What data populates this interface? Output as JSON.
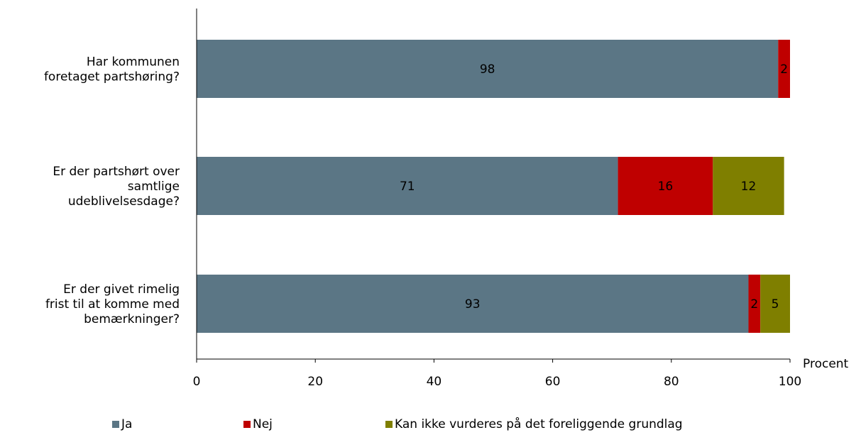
{
  "chart_data": {
    "type": "bar",
    "orientation": "horizontal",
    "stacked": true,
    "categories": [
      [
        "Har kommunen",
        "foretaget partshøring?"
      ],
      [
        "Er der partshørt over",
        "samtlige",
        "udeblivelsesdage?"
      ],
      [
        "Er der givet rimelig",
        "frist til at komme med",
        "bemærkninger?"
      ]
    ],
    "series": [
      {
        "name": "Ja",
        "color": "#5b7685",
        "values": [
          98,
          71,
          93
        ]
      },
      {
        "name": "Nej",
        "color": "#bf0000",
        "values": [
          2,
          16,
          2
        ]
      },
      {
        "name": "Kan ikke vurderes på det foreliggende grundlag",
        "color": "#7f7f00",
        "values": [
          0,
          12,
          5
        ]
      }
    ],
    "xlabel": "Procent",
    "xlim": [
      0,
      100
    ],
    "xticks": [
      0,
      20,
      40,
      60,
      80,
      100
    ],
    "grid": false,
    "legend_position": "bottom"
  }
}
